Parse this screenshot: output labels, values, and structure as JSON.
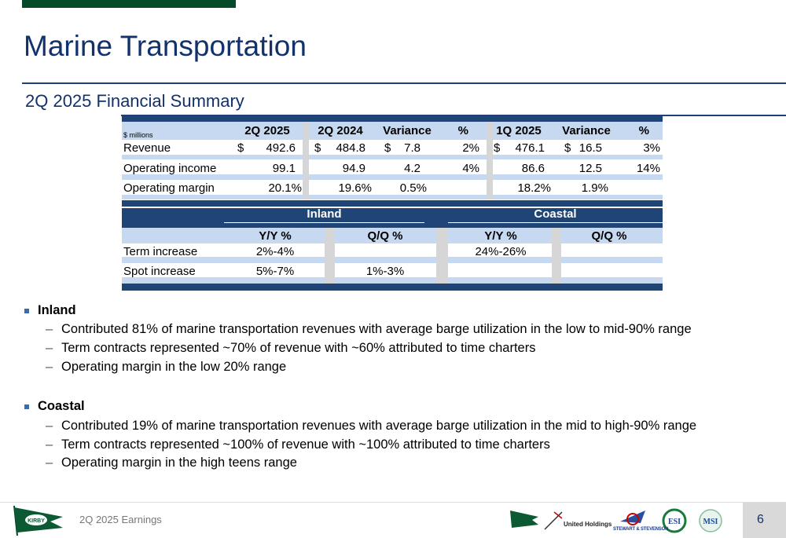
{
  "header": {
    "title": "Marine Transportation",
    "subtitle": "2Q 2025 Financial Summary"
  },
  "financial_table": {
    "units_label": "$ millions",
    "columns": [
      "2Q 2025",
      "2Q 2024",
      "Variance",
      "%",
      "1Q 2025",
      "Variance",
      "%"
    ],
    "rows": [
      {
        "label": "Revenue",
        "cur": "$",
        "v2q25": "492.6",
        "v2q24": "484.8",
        "var": "7.8",
        "pct": "2%",
        "v1q25": "476.1",
        "var2": "16.5",
        "pct2": "3%"
      },
      {
        "label": "Operating income",
        "v2q25": "99.1",
        "v2q24": "94.9",
        "var": "4.2",
        "pct": "4%",
        "v1q25": "86.6",
        "var2": "12.5",
        "pct2": "14%"
      },
      {
        "label": "Operating margin",
        "v2q25": "20.1%",
        "v2q24": "19.6%",
        "var": "0.5%",
        "pct": "",
        "v1q25": "18.2%",
        "var2": "1.9%",
        "pct2": ""
      }
    ]
  },
  "pricing_table": {
    "groups": [
      "Inland",
      "Coastal"
    ],
    "subcolumns": [
      "Y/Y  %",
      "Q/Q  %",
      "Y/Y  %",
      "Q/Q  %"
    ],
    "rows": [
      {
        "label": "Term increase",
        "inland_yy": "2%-4%",
        "inland_qq": "",
        "coastal_yy": "24%-26%",
        "coastal_qq": ""
      },
      {
        "label": "Spot increase",
        "inland_yy": "5%-7%",
        "inland_qq": "1%-3%",
        "coastal_yy": "",
        "coastal_qq": ""
      }
    ]
  },
  "bullets": [
    {
      "heading": "Inland",
      "items": [
        "Contributed 81% of marine transportation revenues with average barge utilization in the low to mid-90% range",
        "Term contracts represented ~70% of revenue with ~60% attributed to time charters",
        "Operating margin in the low 20% range"
      ]
    },
    {
      "heading": "Coastal",
      "items": [
        "Contributed 19% of marine transportation revenues with average barge utilization in the mid to high-90% range",
        "Term contracts represented ~100% of revenue with ~100% attributed to time charters",
        "Operating margin in the high teens range"
      ]
    }
  ],
  "dash": "–",
  "footer": {
    "label": "2Q 2025 Earnings",
    "page": "6",
    "logo_text": "KIRBY",
    "partner_logos": [
      "Kirby",
      "United Holdings",
      "Stewart & Stevenson",
      "ESI",
      "MSI"
    ]
  },
  "colors": {
    "navy": "#1f4577",
    "light_blue": "#c6d9f0",
    "title": "#12326b",
    "green": "#064a2a"
  }
}
